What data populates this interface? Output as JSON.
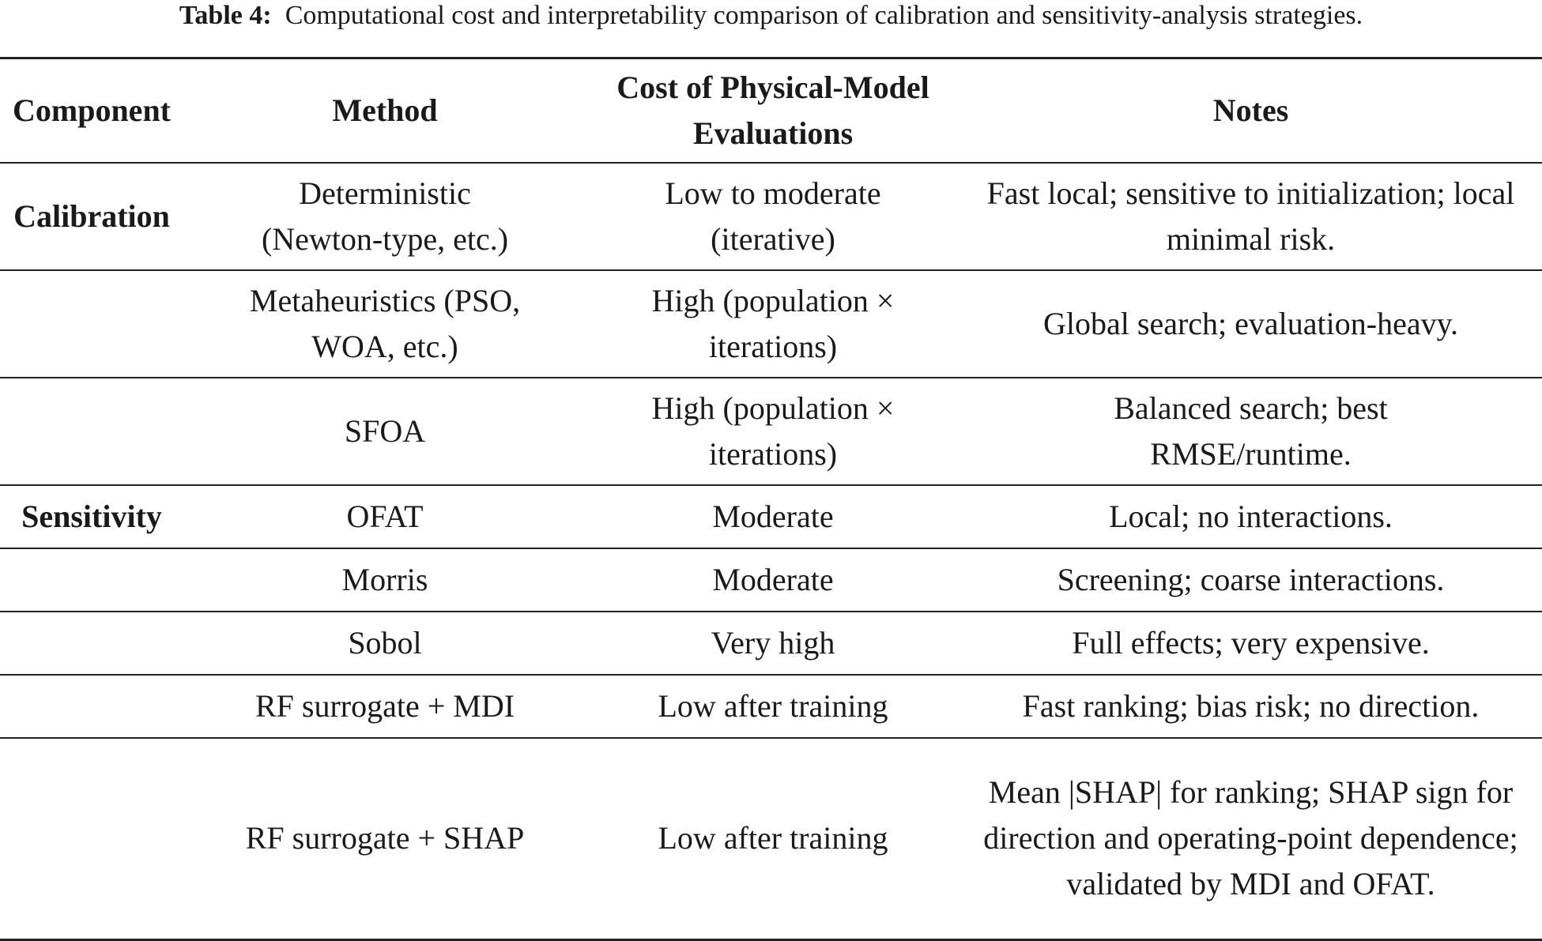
{
  "caption": {
    "label": "Table 4:",
    "text": "Computational cost and interpretability comparison of calibration and sensitivity-analysis strategies."
  },
  "table": {
    "headers": [
      "Component",
      "Method",
      "Cost of Physical-Model Evaluations",
      "Notes"
    ],
    "rows": [
      {
        "component": "Calibration",
        "method": "Deterministic (Newton-type, etc.)",
        "cost": "Low to moderate (iterative)",
        "notes": "Fast local; sensitive to initialization; local minimal risk."
      },
      {
        "component": "",
        "method": "Metaheuristics (PSO, WOA, etc.)",
        "cost": "High (population × iterations)",
        "notes": "Global search; evaluation-heavy."
      },
      {
        "component": "",
        "method": "SFOA",
        "cost": "High (population × iterations)",
        "notes": "Balanced search; best RMSE/runtime."
      },
      {
        "component": "Sensitivity",
        "method": "OFAT",
        "cost": "Moderate",
        "notes": "Local; no interactions."
      },
      {
        "component": "",
        "method": "Morris",
        "cost": "Moderate",
        "notes": "Screening; coarse interactions."
      },
      {
        "component": "",
        "method": "Sobol",
        "cost": "Very high",
        "notes": "Full effects; very expensive."
      },
      {
        "component": "",
        "method": "RF surrogate + MDI",
        "cost": "Low after training",
        "notes": "Fast ranking; bias risk; no direction."
      },
      {
        "component": "",
        "method": "RF surrogate + SHAP",
        "cost": "Low after training",
        "notes": "Mean |SHAP| for ranking; SHAP sign for direction and operating-point dependence; validated by MDI and OFAT."
      }
    ]
  }
}
